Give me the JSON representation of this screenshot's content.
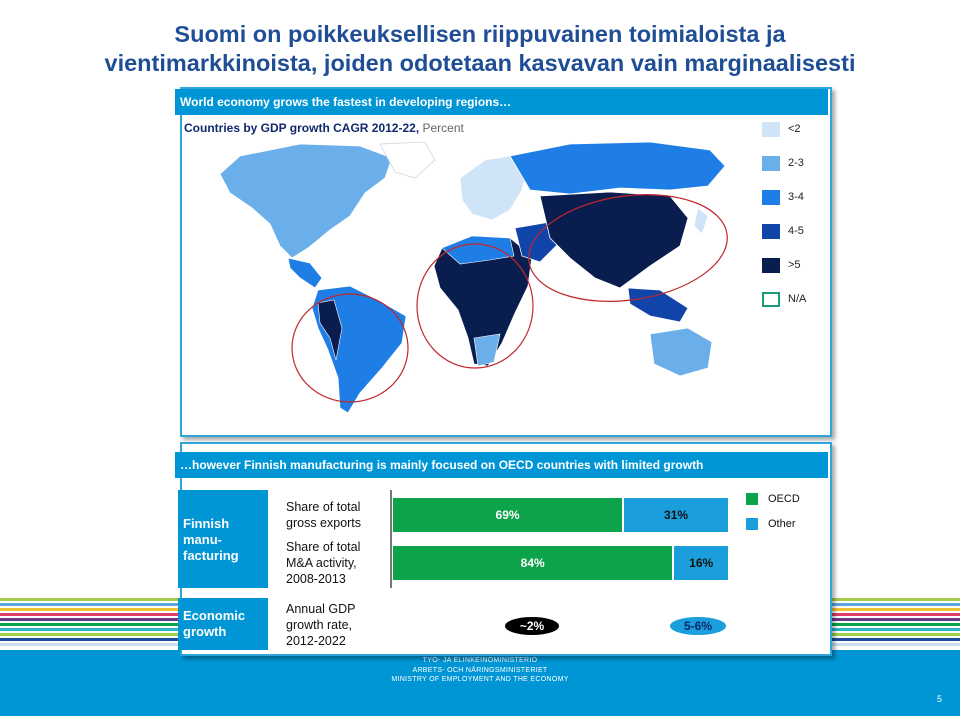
{
  "slide": {
    "title_line1": "Suomi on poikkeuksellisen riippuvainen toimialoista ja",
    "title_line2": "vientimarkkinoista, joiden odotetaan kasvavan vain marginaalisesti",
    "page_number": "5"
  },
  "map_panel": {
    "header": "World economy grows the fastest in developing regions…",
    "subtitle_bold": "Countries by GDP growth CAGR 2012-22,",
    "subtitle_unit": " Percent",
    "legend": [
      {
        "label": "<2",
        "color": "#cfe4f7"
      },
      {
        "label": "2-3",
        "color": "#6aaeea"
      },
      {
        "label": "3-4",
        "color": "#1f7de6"
      },
      {
        "label": "4-5",
        "color": "#1144a8"
      },
      {
        "label": ">5",
        "color": "#0a1d4f"
      },
      {
        "label": "N/A",
        "color": "#ffffff"
      }
    ]
  },
  "manufacturing_panel": {
    "header": "…however Finnish manufacturing is mainly focused on OECD countries with limited growth",
    "rows": [
      {
        "label": "Finnish manu-facturing"
      },
      {
        "label": "Economic growth"
      }
    ],
    "row_label_lines": {
      "finnish": [
        "Finnish",
        "manu-",
        "facturing"
      ],
      "economic": [
        "Economic",
        "growth"
      ]
    },
    "metrics": {
      "exports": [
        "Share of total",
        "gross exports"
      ],
      "mna": [
        "Share of total",
        "M&A activity,",
        "2008-2013"
      ],
      "gdp": [
        "Annual GDP",
        "growth rate,",
        "2012-2022"
      ]
    },
    "legend": [
      {
        "label": "OECD",
        "color": "#0da34a"
      },
      {
        "label": "Other",
        "color": "#1b9fdc"
      }
    ]
  },
  "chart_data": {
    "type": "bar",
    "categories": [
      "Share of total gross exports",
      "Share of total M&A activity, 2008-2013"
    ],
    "series": [
      {
        "name": "OECD",
        "values": [
          69,
          84
        ],
        "labels": [
          "69%",
          "84%"
        ]
      },
      {
        "name": "Other",
        "values": [
          31,
          16
        ],
        "labels": [
          "31%",
          "16%"
        ]
      }
    ],
    "stacked": true,
    "gdp_growth": {
      "oecd_label": "~2%",
      "other_label": "5-6%"
    }
  },
  "footer": {
    "line1": "TYÖ- JA ELINKEINOMINISTERIÖ",
    "line2": "ARBETS- OCH NÄRINGSMINISTERIET",
    "line3": "MINISTRY OF EMPLOYMENT AND THE ECONOMY"
  }
}
